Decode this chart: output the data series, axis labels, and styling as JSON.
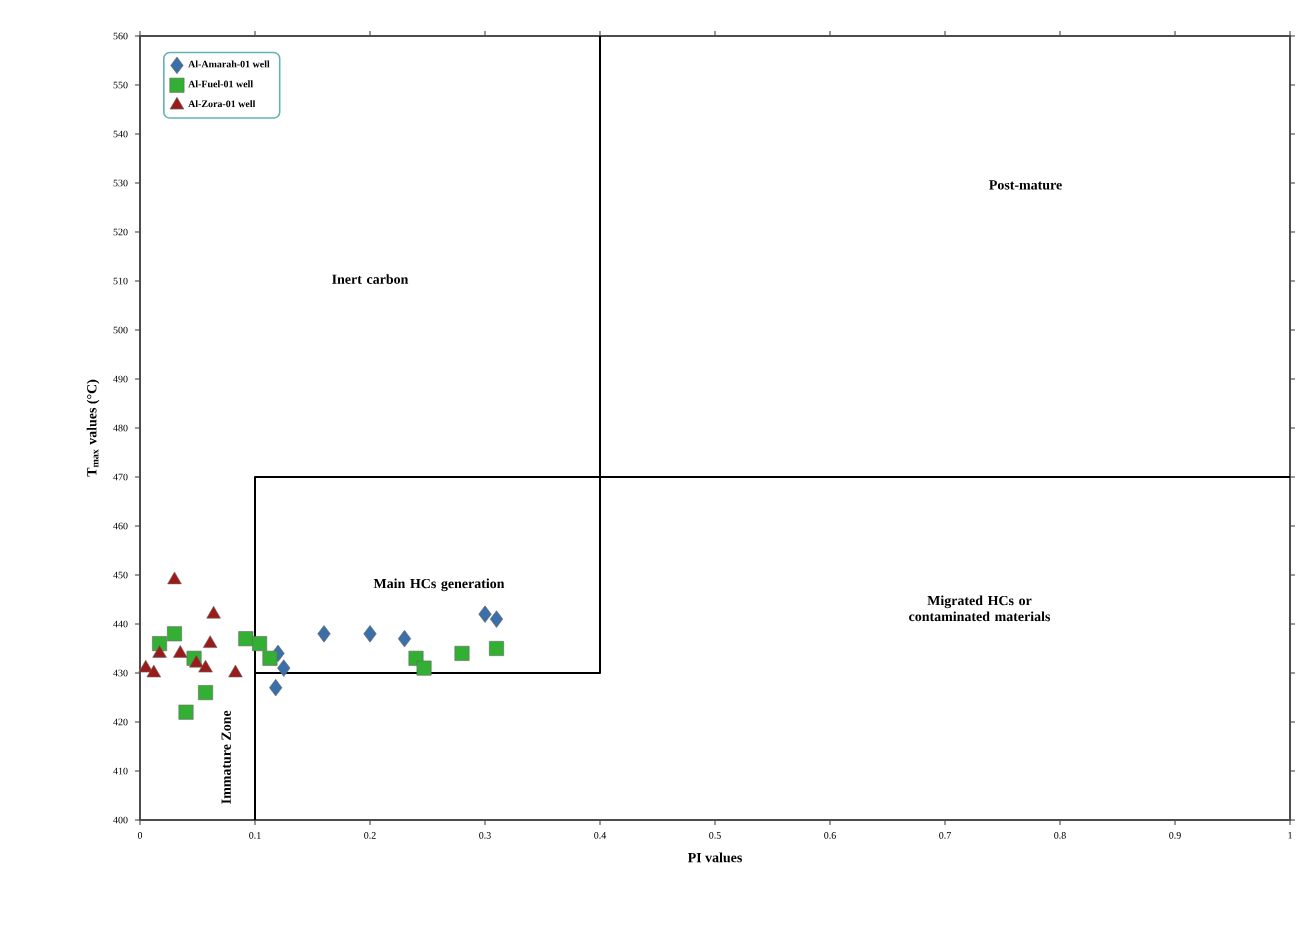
{
  "chart_data": {
    "type": "scatter",
    "xlabel": "PI values",
    "ylabel": "T$_{max}$ values (°C)",
    "xlim": [
      0,
      1
    ],
    "ylim": [
      400,
      560
    ],
    "xticks": [
      0,
      0.1,
      0.2,
      0.3,
      0.4,
      0.5,
      0.6,
      0.7,
      0.8,
      0.9,
      1
    ],
    "yticks": [
      400,
      410,
      420,
      430,
      440,
      450,
      460,
      470,
      480,
      490,
      500,
      510,
      520,
      530,
      540,
      550,
      560
    ],
    "legend": "top left",
    "grid": false,
    "series": [
      {
        "name": "Al-Amarah-01 well",
        "color": "#3a6fa8",
        "marker": "diamond",
        "x": [
          0.12,
          0.118,
          0.125,
          0.16,
          0.2,
          0.23,
          0.3,
          0.31
        ],
        "values": [
          434,
          427,
          431,
          438,
          438,
          437,
          442,
          441
        ]
      },
      {
        "name": "Al-Fuel-01 well",
        "color": "#33b033",
        "marker": "square",
        "x": [
          0.017,
          0.03,
          0.04,
          0.047,
          0.057,
          0.092,
          0.104,
          0.113,
          0.24,
          0.247,
          0.28,
          0.31
        ],
        "values": [
          436,
          438,
          422,
          433,
          426,
          437,
          436,
          433,
          433,
          431,
          434,
          435
        ]
      },
      {
        "name": "Al-Zora-01 well",
        "color": "#9b1b1b",
        "marker": "triangle",
        "x": [
          0.03,
          0.064,
          0.005,
          0.017,
          0.035,
          0.049,
          0.057,
          0.083,
          0.012,
          0.061
        ],
        "values": [
          449,
          442,
          431,
          434,
          434,
          432,
          431,
          430,
          430,
          436
        ]
      },
      {
        "type": "line",
        "color": "#000000",
        "marker": "none",
        "x": [
          0.1,
          0.1,
          1
        ],
        "values": [
          400,
          470,
          470
        ]
      },
      {
        "type": "line",
        "color": "#000000",
        "marker": "none",
        "x": [
          0.4,
          0.4,
          0.1
        ],
        "values": [
          560,
          430,
          430
        ]
      }
    ],
    "annotations": [
      "Inert carbon",
      "Post-mature",
      "Main HCs generation",
      "Migrated HCs or contaminated materials",
      "Immature Zone"
    ]
  }
}
